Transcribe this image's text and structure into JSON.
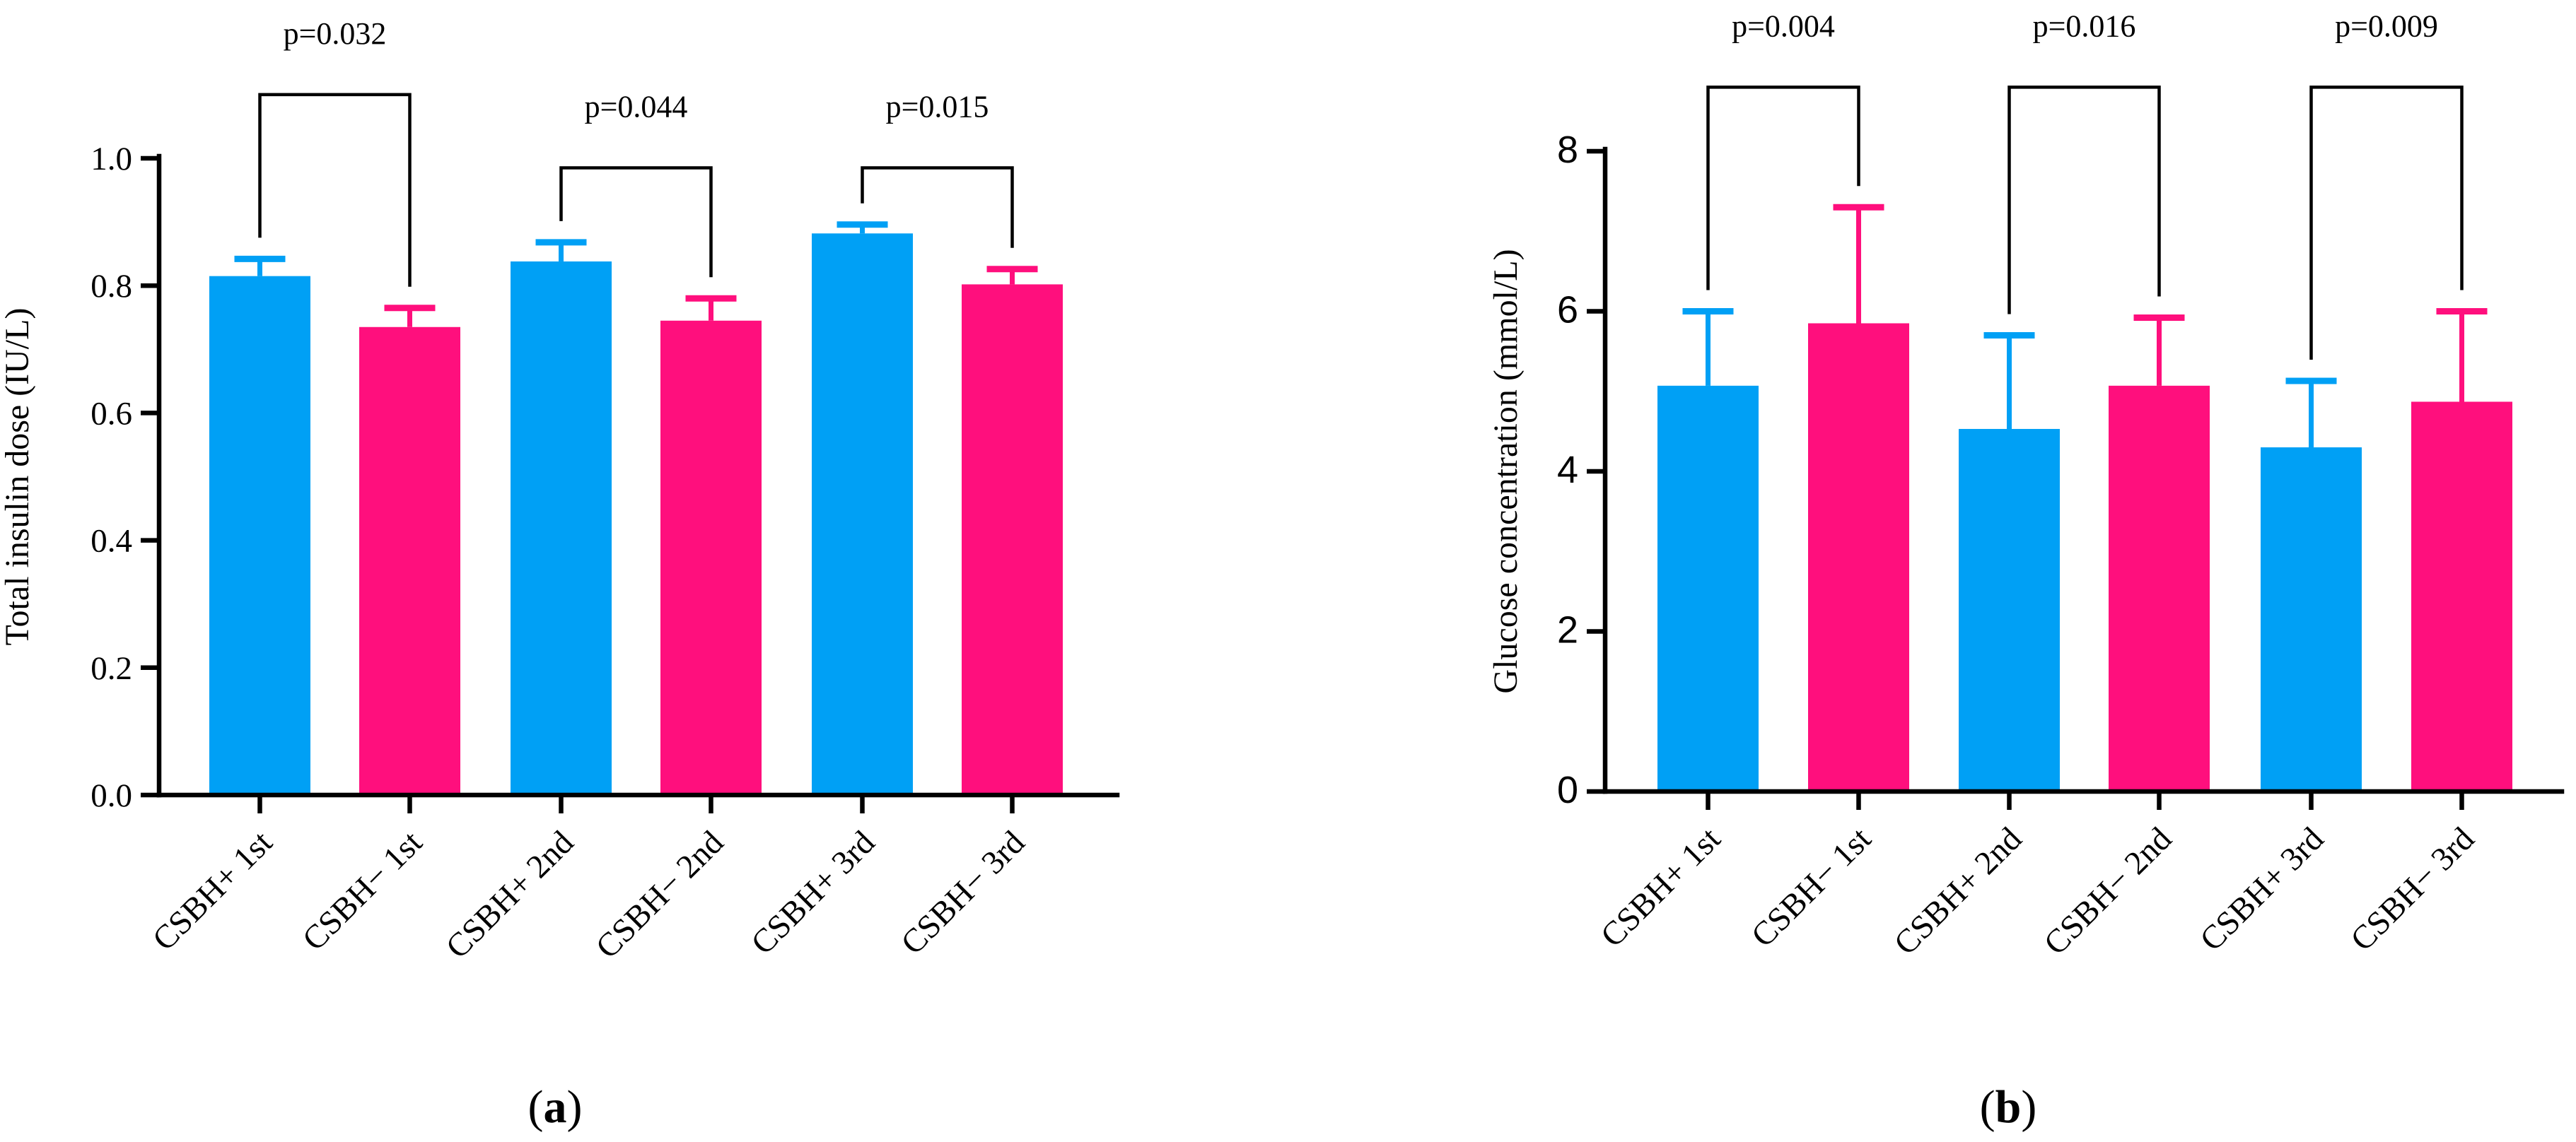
{
  "chart_data": [
    {
      "type": "bar",
      "panel_label": "a",
      "categories": [
        "CSBH+ 1st",
        "CSBH− 1st",
        "CSBH+ 2nd",
        "CSBH− 2nd",
        "CSBH+ 3rd",
        "CSBH− 3rd"
      ],
      "values": [
        0.815,
        0.735,
        0.838,
        0.745,
        0.882,
        0.802
      ],
      "error": [
        0.027,
        0.03,
        0.03,
        0.035,
        0.014,
        0.024
      ],
      "colors": [
        "#00a0f5",
        "#ff0f7d",
        "#00a0f5",
        "#ff0f7d",
        "#00a0f5",
        "#ff0f7d"
      ],
      "xlabel": "",
      "ylabel": "Total insulin dose (IU/L)",
      "ylim": [
        0,
        1.0
      ],
      "yticks": [
        "0.0",
        "0.2",
        "0.4",
        "0.6",
        "0.8",
        "1.0"
      ],
      "ytick_values": [
        0,
        0.2,
        0.4,
        0.6,
        0.8,
        1.0
      ],
      "comparisons": [
        {
          "pair": [
            0,
            1
          ],
          "label": "p=0.032",
          "level": 1.1
        },
        {
          "pair": [
            2,
            3
          ],
          "label": "p=0.044",
          "level": 0.985
        },
        {
          "pair": [
            4,
            5
          ],
          "label": "p=0.015",
          "level": 0.985
        }
      ]
    },
    {
      "type": "bar",
      "panel_label": "b",
      "categories": [
        "CSBH+ 1st",
        "CSBH− 1st",
        "CSBH+ 2nd",
        "CSBH− 2nd",
        "CSBH+ 3rd",
        "CSBH− 3rd"
      ],
      "values": [
        5.07,
        5.85,
        4.53,
        5.07,
        4.3,
        4.87
      ],
      "error": [
        0.93,
        1.45,
        1.17,
        0.85,
        0.83,
        1.13
      ],
      "colors": [
        "#00a0f5",
        "#ff0f7d",
        "#00a0f5",
        "#ff0f7d",
        "#00a0f5",
        "#ff0f7d"
      ],
      "xlabel": "",
      "ylabel": "Glucose concentration (mmol/L)",
      "ylim": [
        0,
        8
      ],
      "yticks": [
        "0",
        "2",
        "4",
        "6",
        "8"
      ],
      "ytick_values": [
        0,
        2,
        4,
        6,
        8
      ],
      "comparisons": [
        {
          "pair": [
            0,
            1
          ],
          "label": "p=0.004",
          "level": 8.8
        },
        {
          "pair": [
            2,
            3
          ],
          "label": "p=0.016",
          "level": 8.8
        },
        {
          "pair": [
            4,
            5
          ],
          "label": "p=0.009",
          "level": 8.8
        }
      ]
    }
  ]
}
